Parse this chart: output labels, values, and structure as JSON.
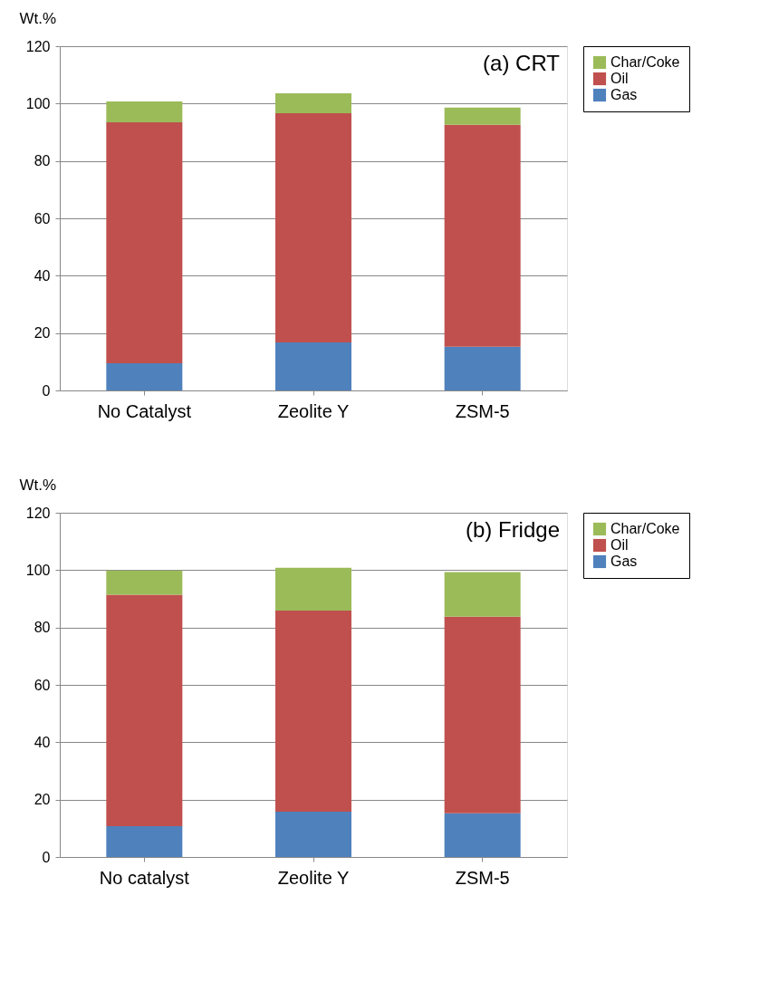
{
  "chart_data": [
    {
      "type": "bar",
      "stacked": true,
      "categories": [
        "No Catalyst",
        "Zeolite Y",
        "ZSM-5"
      ],
      "ylabel": "Wt.%",
      "annotations": [
        "(a) CRT"
      ],
      "ylim": [
        0,
        120
      ],
      "yticks": [
        0,
        20,
        40,
        60,
        80,
        100,
        120
      ],
      "grid": "y",
      "legend": "right",
      "series": [
        {
          "name": "Gas",
          "color": "#4f81bd",
          "values": [
            9.5,
            16.7,
            15.2
          ]
        },
        {
          "name": "Oil",
          "color": "#c0504d",
          "values": [
            84.0,
            79.9,
            77.4
          ]
        },
        {
          "name": "Char/Coke",
          "color": "#9bbb59",
          "values": [
            7.2,
            7.0,
            6.0
          ]
        }
      ]
    },
    {
      "type": "bar",
      "stacked": true,
      "categories": [
        "No catalyst",
        "Zeolite Y",
        "ZSM-5"
      ],
      "ylabel": "Wt.%",
      "annotations": [
        "(b) Fridge"
      ],
      "ylim": [
        0,
        120
      ],
      "yticks": [
        0,
        20,
        40,
        60,
        80,
        100,
        120
      ],
      "grid": "y",
      "legend": "right",
      "series": [
        {
          "name": "Gas",
          "color": "#4f81bd",
          "values": [
            10.7,
            15.8,
            15.2
          ]
        },
        {
          "name": "Oil",
          "color": "#c0504d",
          "values": [
            80.7,
            70.1,
            68.6
          ]
        },
        {
          "name": "Char/Coke",
          "color": "#9bbb59",
          "values": [
            8.5,
            14.9,
            15.5
          ]
        }
      ]
    }
  ]
}
